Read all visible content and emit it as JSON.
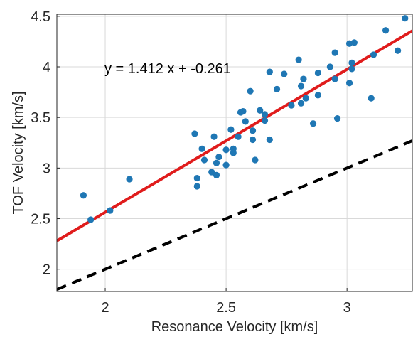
{
  "chart_data": {
    "type": "scatter",
    "xlabel": "Resonance Velocity [km/s]",
    "ylabel": "TOF Velocity [km/s]",
    "xlim": [
      1.8,
      3.27
    ],
    "ylim": [
      1.78,
      4.52
    ],
    "xticks": [
      2,
      2.5,
      3
    ],
    "xtick_labels": [
      "2",
      "2.5",
      "3"
    ],
    "yticks": [
      2,
      2.5,
      3,
      3.5,
      4,
      4.5
    ],
    "ytick_labels": [
      "2",
      "2.5",
      "3",
      "3.5",
      "4",
      "4.5"
    ],
    "grid": true,
    "annotation": "y = 1.412 x + -0.261",
    "colors": {
      "points": "#1f77b4",
      "fit_line": "#e01c1c",
      "reference_line": "#000000",
      "grid": "#d9d9d9",
      "axes": "#262626"
    },
    "fit_line": {
      "slope": 1.412,
      "intercept": -0.261,
      "style": "solid"
    },
    "reference_line": {
      "slope": 1.0,
      "intercept": 0.0,
      "style": "dashed"
    },
    "points": [
      [
        1.91,
        2.73
      ],
      [
        1.94,
        2.49
      ],
      [
        2.02,
        2.58
      ],
      [
        2.1,
        2.89
      ],
      [
        2.37,
        3.34
      ],
      [
        2.38,
        2.9
      ],
      [
        2.38,
        2.82
      ],
      [
        2.4,
        3.19
      ],
      [
        2.41,
        3.08
      ],
      [
        2.44,
        2.96
      ],
      [
        2.45,
        3.31
      ],
      [
        2.46,
        2.93
      ],
      [
        2.46,
        3.05
      ],
      [
        2.47,
        3.11
      ],
      [
        2.5,
        3.03
      ],
      [
        2.5,
        3.18
      ],
      [
        2.52,
        3.38
      ],
      [
        2.53,
        3.15
      ],
      [
        2.53,
        3.19
      ],
      [
        2.55,
        3.31
      ],
      [
        2.56,
        3.55
      ],
      [
        2.57,
        3.56
      ],
      [
        2.58,
        3.46
      ],
      [
        2.6,
        3.76
      ],
      [
        2.61,
        3.37
      ],
      [
        2.61,
        3.28
      ],
      [
        2.62,
        3.08
      ],
      [
        2.64,
        3.57
      ],
      [
        2.66,
        3.47
      ],
      [
        2.66,
        3.53
      ],
      [
        2.68,
        3.28
      ],
      [
        2.68,
        3.95
      ],
      [
        2.71,
        3.78
      ],
      [
        2.74,
        3.93
      ],
      [
        2.77,
        3.62
      ],
      [
        2.8,
        4.07
      ],
      [
        2.81,
        3.81
      ],
      [
        2.81,
        3.64
      ],
      [
        2.82,
        3.88
      ],
      [
        2.83,
        3.69
      ],
      [
        2.86,
        3.44
      ],
      [
        2.88,
        3.72
      ],
      [
        2.88,
        3.94
      ],
      [
        2.93,
        4.0
      ],
      [
        2.95,
        3.88
      ],
      [
        2.95,
        4.14
      ],
      [
        2.96,
        3.49
      ],
      [
        3.01,
        4.23
      ],
      [
        3.01,
        3.84
      ],
      [
        3.02,
        4.04
      ],
      [
        3.02,
        3.98
      ],
      [
        3.03,
        4.24
      ],
      [
        3.1,
        3.69
      ],
      [
        3.11,
        4.12
      ],
      [
        3.16,
        4.36
      ],
      [
        3.21,
        4.16
      ],
      [
        3.24,
        4.48
      ]
    ]
  }
}
